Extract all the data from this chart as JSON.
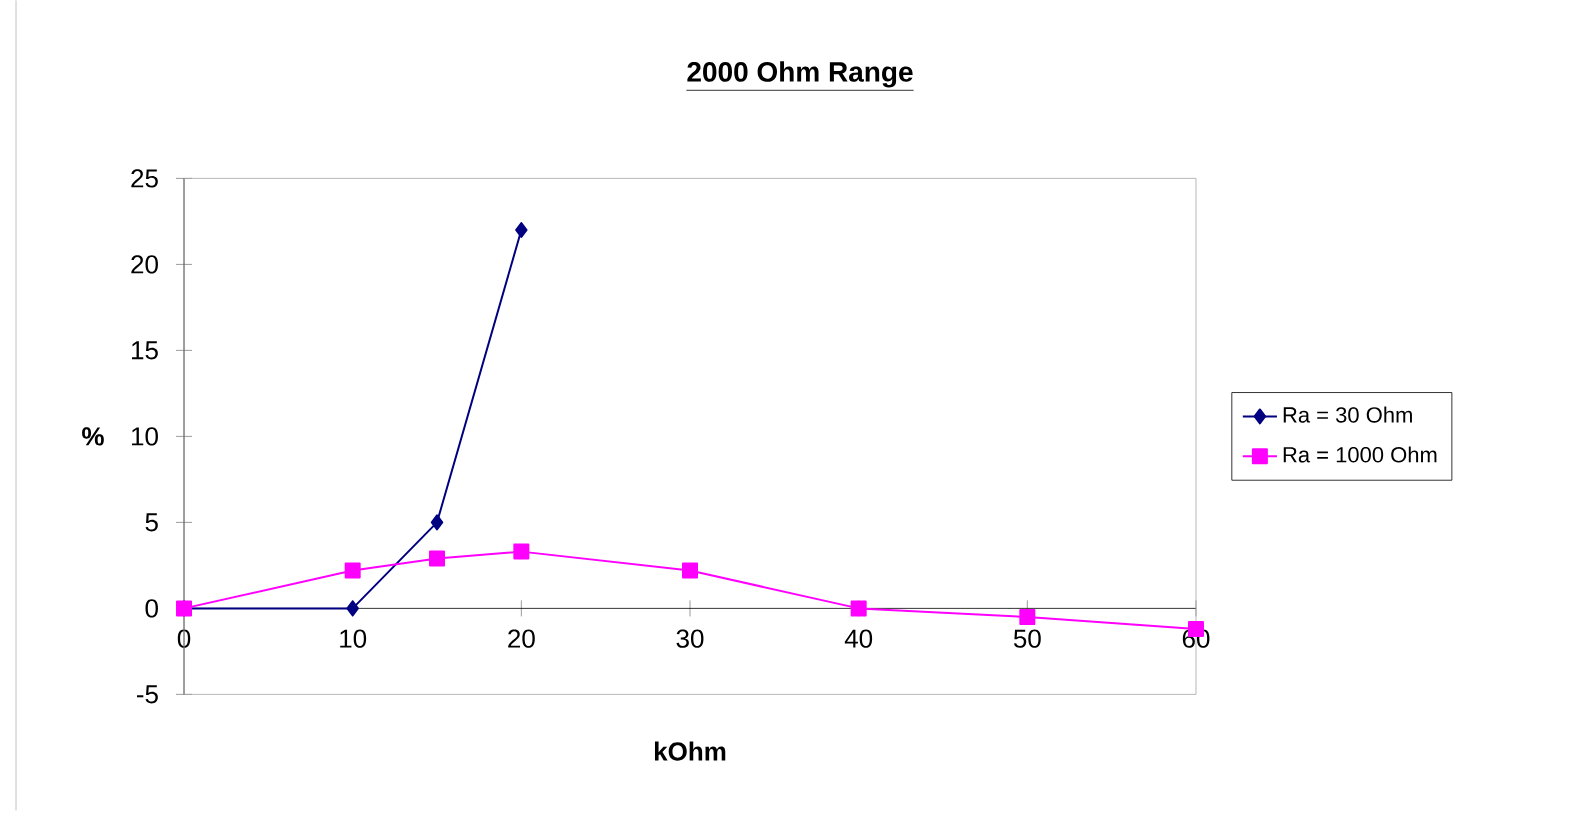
{
  "chart_data": {
    "type": "line",
    "title": "2000 Ohm Range",
    "xlabel": "kOhm",
    "ylabel": "%",
    "xlim": [
      0,
      60
    ],
    "xticks": [
      0,
      10,
      20,
      30,
      40,
      50,
      60
    ],
    "ylim": [
      -5,
      25
    ],
    "yticks": [
      -5,
      0,
      5,
      10,
      15,
      20,
      25
    ],
    "grid": false,
    "legend": "right",
    "line_style": "solid",
    "series": [
      {
        "name": "Ra = 30 Ohm",
        "color": "#000080",
        "marker": "diamond",
        "x": [
          0,
          10,
          15,
          20
        ],
        "values": [
          0,
          0,
          5,
          22
        ]
      },
      {
        "name": "Ra = 1000 Ohm",
        "color": "#ff00ff",
        "marker": "square",
        "x": [
          0,
          10,
          15,
          20,
          30,
          40,
          50,
          60
        ],
        "values": [
          0,
          2.2,
          2.9,
          3.3,
          2.2,
          0,
          -0.5,
          -1.2
        ]
      }
    ]
  }
}
